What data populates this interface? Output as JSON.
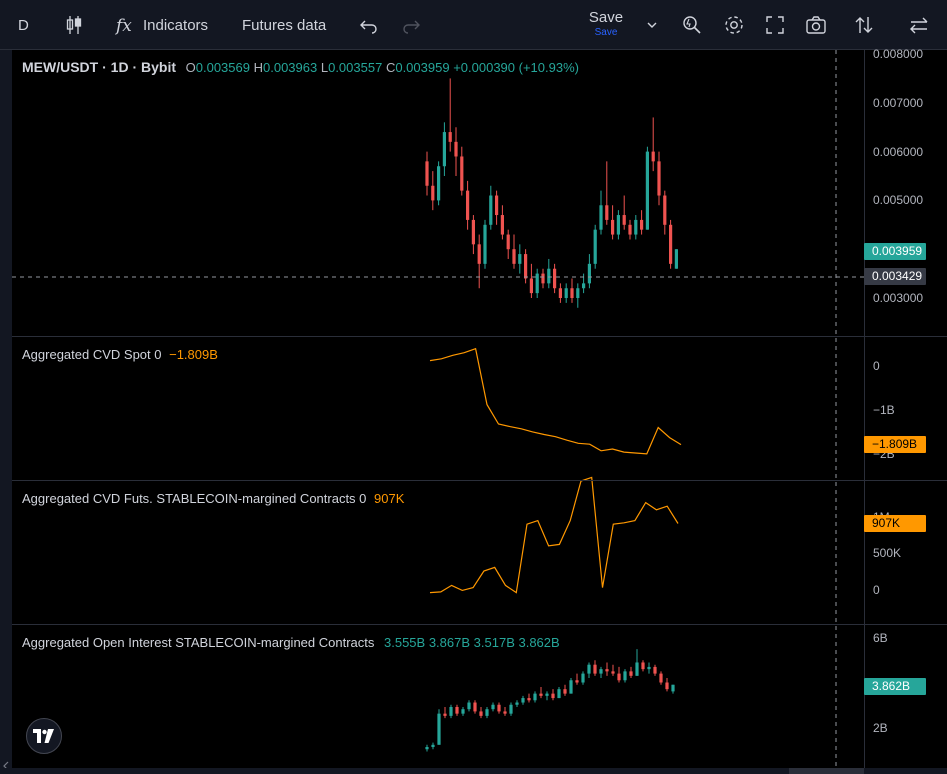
{
  "toolbar": {
    "symbol_short": "D",
    "indicators_label": "Indicators",
    "futures_label": "Futures data",
    "save_label": "Save",
    "save_sub_label": "Save"
  },
  "main_legend": {
    "symbol": "MEW/USDT · 1D · Bybit",
    "o_label": "O",
    "o_value": "0.003569",
    "h_label": "H",
    "h_value": "0.003963",
    "l_label": "L",
    "l_value": "0.003557",
    "c_label": "C",
    "c_value": "0.003959",
    "change": "+0.000390 (+10.93%)"
  },
  "price_axis": {
    "ticks": [
      "0.008000",
      "0.007000",
      "0.006000",
      "0.005000",
      "0.003000"
    ],
    "last_price": "0.003959",
    "crosshair_price": "0.003429",
    "last_color": "#26a69a"
  },
  "cvd_spot": {
    "title": "Aggregated CVD Spot 0",
    "value": "−1.809B",
    "ticks": [
      "0",
      "−1B",
      "−2B"
    ],
    "tag": "−1.809B",
    "color": "#ff9800"
  },
  "cvd_futs": {
    "title": "Aggregated CVD Futs. STABLECOIN-margined Contracts 0",
    "value": "907K",
    "ticks": [
      "1M",
      "500K",
      "0"
    ],
    "tag": "907K",
    "color": "#ff9800"
  },
  "oi": {
    "title": "Aggregated Open Interest STABLECOIN-margined Contracts",
    "values": [
      "3.555B",
      "3.867B",
      "3.517B",
      "3.862B"
    ],
    "ticks": [
      "6B",
      "2B"
    ],
    "tag": "3.862B",
    "color": "#26a69a"
  },
  "chart_data": {
    "type": "candlestick",
    "price_range": [
      0.0026,
      0.0082
    ],
    "candles": [
      [
        0.0058,
        0.006,
        0.0051,
        0.0053
      ],
      [
        0.0053,
        0.0056,
        0.0048,
        0.005
      ],
      [
        0.005,
        0.0058,
        0.0049,
        0.0057
      ],
      [
        0.0057,
        0.0066,
        0.0055,
        0.0064
      ],
      [
        0.0064,
        0.0075,
        0.006,
        0.0062
      ],
      [
        0.0062,
        0.0065,
        0.0055,
        0.0059
      ],
      [
        0.0059,
        0.0061,
        0.0051,
        0.0052
      ],
      [
        0.0052,
        0.0054,
        0.0044,
        0.0046
      ],
      [
        0.0046,
        0.0047,
        0.0039,
        0.0041
      ],
      [
        0.0041,
        0.0043,
        0.0032,
        0.0037
      ],
      [
        0.0037,
        0.0046,
        0.0036,
        0.0045
      ],
      [
        0.0045,
        0.0053,
        0.0044,
        0.0051
      ],
      [
        0.0051,
        0.0052,
        0.0045,
        0.0047
      ],
      [
        0.0047,
        0.0049,
        0.0042,
        0.0043
      ],
      [
        0.0043,
        0.0044,
        0.0038,
        0.004
      ],
      [
        0.004,
        0.0043,
        0.0036,
        0.0037
      ],
      [
        0.0037,
        0.0041,
        0.0035,
        0.0039
      ],
      [
        0.0039,
        0.004,
        0.0033,
        0.0034
      ],
      [
        0.0034,
        0.0037,
        0.003,
        0.0031
      ],
      [
        0.0031,
        0.0036,
        0.003,
        0.0035
      ],
      [
        0.0035,
        0.0036,
        0.0032,
        0.0033
      ],
      [
        0.0033,
        0.0038,
        0.0032,
        0.0036
      ],
      [
        0.0036,
        0.0037,
        0.0031,
        0.0032
      ],
      [
        0.0032,
        0.0033,
        0.0029,
        0.003
      ],
      [
        0.003,
        0.0033,
        0.0029,
        0.0032
      ],
      [
        0.0032,
        0.0034,
        0.0029,
        0.003
      ],
      [
        0.003,
        0.0033,
        0.0028,
        0.0032
      ],
      [
        0.0032,
        0.0035,
        0.0031,
        0.0033
      ],
      [
        0.0033,
        0.0039,
        0.0032,
        0.0037
      ],
      [
        0.0037,
        0.0045,
        0.0036,
        0.0044
      ],
      [
        0.0044,
        0.0052,
        0.0043,
        0.0049
      ],
      [
        0.0049,
        0.0058,
        0.0045,
        0.0046
      ],
      [
        0.0046,
        0.0049,
        0.0042,
        0.0043
      ],
      [
        0.0043,
        0.0048,
        0.0042,
        0.0047
      ],
      [
        0.0047,
        0.0051,
        0.0044,
        0.0045
      ],
      [
        0.0045,
        0.0046,
        0.0042,
        0.0043
      ],
      [
        0.0043,
        0.0047,
        0.0042,
        0.0046
      ],
      [
        0.0046,
        0.0048,
        0.0043,
        0.0044
      ],
      [
        0.0044,
        0.0061,
        0.0044,
        0.006
      ],
      [
        0.006,
        0.0067,
        0.0056,
        0.0058
      ],
      [
        0.0058,
        0.006,
        0.0049,
        0.0051
      ],
      [
        0.0051,
        0.0052,
        0.0043,
        0.0045
      ],
      [
        0.0045,
        0.0046,
        0.0036,
        0.0037
      ],
      [
        0.0036,
        0.004,
        0.0036,
        0.004
      ]
    ],
    "cvd_spot_series": [
      0.1,
      0.14,
      0.22,
      0.28,
      0.37,
      -0.9,
      -1.34,
      -1.4,
      -1.45,
      -1.52,
      -1.58,
      -1.63,
      -1.71,
      -1.78,
      -1.8,
      -1.95,
      -1.91,
      -1.98,
      -2.0,
      -2.02,
      -1.42,
      -1.65,
      -1.81
    ],
    "cvd_futs_series": [
      -0.05,
      -0.04,
      0.05,
      -0.02,
      0.02,
      0.25,
      0.3,
      0.05,
      -0.05,
      0.9,
      0.95,
      0.6,
      0.62,
      0.95,
      1.5,
      1.55,
      0.02,
      0.9,
      0.92,
      0.95,
      1.2,
      1.1,
      1.15,
      0.91
    ],
    "oi_candles": [
      [
        1.0,
        1.2,
        0.9,
        1.1
      ],
      [
        1.1,
        1.3,
        1.0,
        1.2
      ],
      [
        1.2,
        2.8,
        1.2,
        2.6
      ],
      [
        2.6,
        2.9,
        2.4,
        2.5
      ],
      [
        2.5,
        3.0,
        2.4,
        2.9
      ],
      [
        2.9,
        3.0,
        2.5,
        2.6
      ],
      [
        2.6,
        2.9,
        2.5,
        2.8
      ],
      [
        2.8,
        3.2,
        2.7,
        3.1
      ],
      [
        3.1,
        3.2,
        2.6,
        2.7
      ],
      [
        2.7,
        2.9,
        2.4,
        2.5
      ],
      [
        2.5,
        2.9,
        2.4,
        2.8
      ],
      [
        2.8,
        3.1,
        2.7,
        3.0
      ],
      [
        3.0,
        3.1,
        2.6,
        2.7
      ],
      [
        2.7,
        2.9,
        2.5,
        2.6
      ],
      [
        2.6,
        3.1,
        2.5,
        3.0
      ],
      [
        3.0,
        3.2,
        2.9,
        3.1
      ],
      [
        3.1,
        3.4,
        3.0,
        3.3
      ],
      [
        3.3,
        3.5,
        3.1,
        3.2
      ],
      [
        3.2,
        3.6,
        3.1,
        3.5
      ],
      [
        3.5,
        3.8,
        3.3,
        3.4
      ],
      [
        3.4,
        3.6,
        3.2,
        3.5
      ],
      [
        3.5,
        3.7,
        3.2,
        3.3
      ],
      [
        3.3,
        3.8,
        3.3,
        3.7
      ],
      [
        3.7,
        3.9,
        3.4,
        3.5
      ],
      [
        3.5,
        4.2,
        3.5,
        4.1
      ],
      [
        4.1,
        4.4,
        3.9,
        4.0
      ],
      [
        4.0,
        4.5,
        3.9,
        4.4
      ],
      [
        4.4,
        4.9,
        4.2,
        4.8
      ],
      [
        4.8,
        5.0,
        4.3,
        4.4
      ],
      [
        4.4,
        4.7,
        4.2,
        4.6
      ],
      [
        4.6,
        4.9,
        4.3,
        4.5
      ],
      [
        4.5,
        4.8,
        4.3,
        4.4
      ],
      [
        4.4,
        4.7,
        4.0,
        4.1
      ],
      [
        4.1,
        4.6,
        4.0,
        4.5
      ],
      [
        4.5,
        4.7,
        4.2,
        4.3
      ],
      [
        4.3,
        5.5,
        4.3,
        4.9
      ],
      [
        4.9,
        5.0,
        4.5,
        4.6
      ],
      [
        4.6,
        4.9,
        4.4,
        4.7
      ],
      [
        4.7,
        4.8,
        4.3,
        4.4
      ],
      [
        4.4,
        4.5,
        3.9,
        4.0
      ],
      [
        4.0,
        4.2,
        3.6,
        3.7
      ],
      [
        3.6,
        3.9,
        3.5,
        3.9
      ]
    ]
  }
}
